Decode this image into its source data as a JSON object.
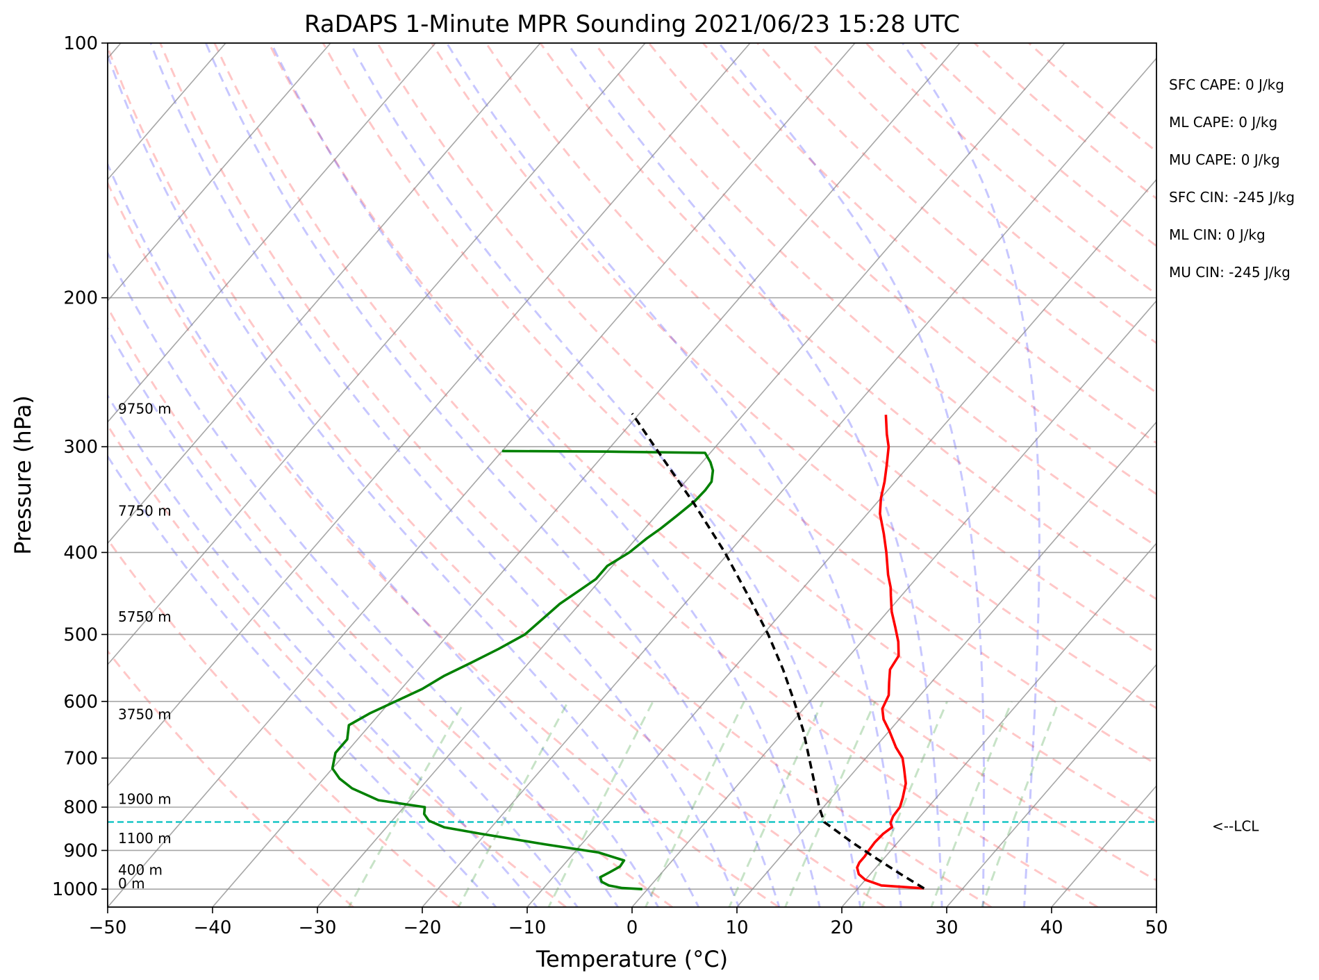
{
  "chart_data": {
    "type": "skew-t",
    "title": "RaDAPS 1-Minute MPR Sounding 2021/06/23 15:28 UTC",
    "xlabel": "Temperature (°C)",
    "ylabel": "Pressure (hPa)",
    "xlim": [
      -50,
      50
    ],
    "ylim": [
      1050,
      100
    ],
    "y_scale": "log",
    "grid": true,
    "x_ticks": [
      -50,
      -40,
      -30,
      -20,
      -10,
      0,
      10,
      20,
      30,
      40,
      50
    ],
    "x_tick_labels": [
      "−50",
      "−40",
      "−30",
      "−20",
      "−10",
      "0",
      "10",
      "20",
      "30",
      "40",
      "50"
    ],
    "y_ticks": [
      100,
      200,
      300,
      400,
      500,
      600,
      700,
      800,
      900,
      1000
    ],
    "y_tick_labels": [
      "100",
      "200",
      "300",
      "400",
      "500",
      "600",
      "700",
      "800",
      "900",
      "1000"
    ],
    "lcl_pressure": 833,
    "lcl_label": "<--LCL",
    "height_labels": [
      {
        "text": "9750 m",
        "pressure": 274
      },
      {
        "text": "7750 m",
        "pressure": 362
      },
      {
        "text": "5750 m",
        "pressure": 483
      },
      {
        "text": "3750 m",
        "pressure": 630
      },
      {
        "text": "1900 m",
        "pressure": 793
      },
      {
        "text": "1100 m",
        "pressure": 882
      },
      {
        "text": "400 m",
        "pressure": 962
      },
      {
        "text": "0 m",
        "pressure": 998
      }
    ],
    "stats": [
      "SFC CAPE: 0 J/kg",
      "ML CAPE: 0 J/kg",
      "MU CAPE: 0 J/kg",
      "SFC CIN: -245 J/kg",
      "ML CIN: 0 J/kg",
      "MU CIN: -245 J/kg"
    ],
    "series": [
      {
        "role": "temperature",
        "color": "#ff0000",
        "points": [
          [
            998,
            26.3
          ],
          [
            990,
            22.0
          ],
          [
            975,
            20.0
          ],
          [
            960,
            18.9
          ],
          [
            943,
            18.2
          ],
          [
            930,
            18.0
          ],
          [
            915,
            18.0
          ],
          [
            900,
            17.9
          ],
          [
            880,
            17.8
          ],
          [
            860,
            17.9
          ],
          [
            845,
            18.2
          ],
          [
            835,
            17.7
          ],
          [
            820,
            17.4
          ],
          [
            800,
            17.3
          ],
          [
            780,
            16.8
          ],
          [
            750,
            15.9
          ],
          [
            720,
            14.5
          ],
          [
            700,
            13.5
          ],
          [
            680,
            12.0
          ],
          [
            650,
            10.0
          ],
          [
            630,
            8.5
          ],
          [
            612,
            7.5
          ],
          [
            590,
            7.0
          ],
          [
            570,
            6.0
          ],
          [
            550,
            5.0
          ],
          [
            530,
            4.7
          ],
          [
            510,
            3.5
          ],
          [
            490,
            2.0
          ],
          [
            470,
            0.4
          ],
          [
            450,
            -1.0
          ],
          [
            440,
            -1.7
          ],
          [
            425,
            -3.0
          ],
          [
            400,
            -5.0
          ],
          [
            380,
            -6.8
          ],
          [
            360,
            -8.8
          ],
          [
            345,
            -10.0
          ],
          [
            330,
            -11.0
          ],
          [
            315,
            -12.2
          ],
          [
            300,
            -13.5
          ],
          [
            290,
            -14.7
          ],
          [
            275,
            -16.4
          ]
        ]
      },
      {
        "role": "dewpoint",
        "color": "#008000",
        "points": [
          [
            1000,
            -0.5
          ],
          [
            997,
            -2.5
          ],
          [
            990,
            -4.0
          ],
          [
            980,
            -5.0
          ],
          [
            968,
            -5.5
          ],
          [
            955,
            -5.0
          ],
          [
            940,
            -4.5
          ],
          [
            925,
            -4.6
          ],
          [
            905,
            -7.7
          ],
          [
            885,
            -13.5
          ],
          [
            860,
            -20.5
          ],
          [
            845,
            -24.5
          ],
          [
            830,
            -26.5
          ],
          [
            815,
            -27.5
          ],
          [
            800,
            -28.0
          ],
          [
            785,
            -33.0
          ],
          [
            760,
            -36.5
          ],
          [
            740,
            -38.5
          ],
          [
            720,
            -40.0
          ],
          [
            690,
            -41.0
          ],
          [
            665,
            -41.0
          ],
          [
            640,
            -42.0
          ],
          [
            620,
            -41.0
          ],
          [
            580,
            -38.0
          ],
          [
            560,
            -37.0
          ],
          [
            540,
            -35.5
          ],
          [
            520,
            -34.0
          ],
          [
            500,
            -32.7
          ],
          [
            480,
            -32.3
          ],
          [
            460,
            -31.9
          ],
          [
            445,
            -31.2
          ],
          [
            430,
            -30.5
          ],
          [
            415,
            -30.5
          ],
          [
            400,
            -29.5
          ],
          [
            385,
            -29.0
          ],
          [
            375,
            -28.5
          ],
          [
            362,
            -28.0
          ],
          [
            348,
            -27.5
          ],
          [
            338,
            -27.4
          ],
          [
            330,
            -27.5
          ],
          [
            320,
            -28.3
          ],
          [
            313,
            -29.2
          ],
          [
            305,
            -30.5
          ],
          [
            304,
            -40.0
          ],
          [
            303.5,
            -50.0
          ]
        ]
      },
      {
        "role": "parcel",
        "color": "#000000",
        "points": [
          [
            998,
            26.3
          ],
          [
            960,
            22.9
          ],
          [
            920,
            19.3
          ],
          [
            880,
            15.6
          ],
          [
            833,
            11.3
          ],
          [
            800,
            9.6
          ],
          [
            750,
            7.2
          ],
          [
            700,
            4.6
          ],
          [
            650,
            1.8
          ],
          [
            600,
            -1.5
          ],
          [
            550,
            -5.2
          ],
          [
            500,
            -9.5
          ],
          [
            450,
            -14.6
          ],
          [
            400,
            -20.4
          ],
          [
            350,
            -27.4
          ],
          [
            300,
            -35.8
          ],
          [
            274,
            -40.7
          ]
        ]
      }
    ],
    "background_lines": [
      {
        "role": "dry-adiabat",
        "color": "#ff0000"
      },
      {
        "role": "moist-adiabat",
        "color": "#0000ff"
      },
      {
        "role": "mixing-ratio",
        "color": "#008000"
      }
    ]
  }
}
